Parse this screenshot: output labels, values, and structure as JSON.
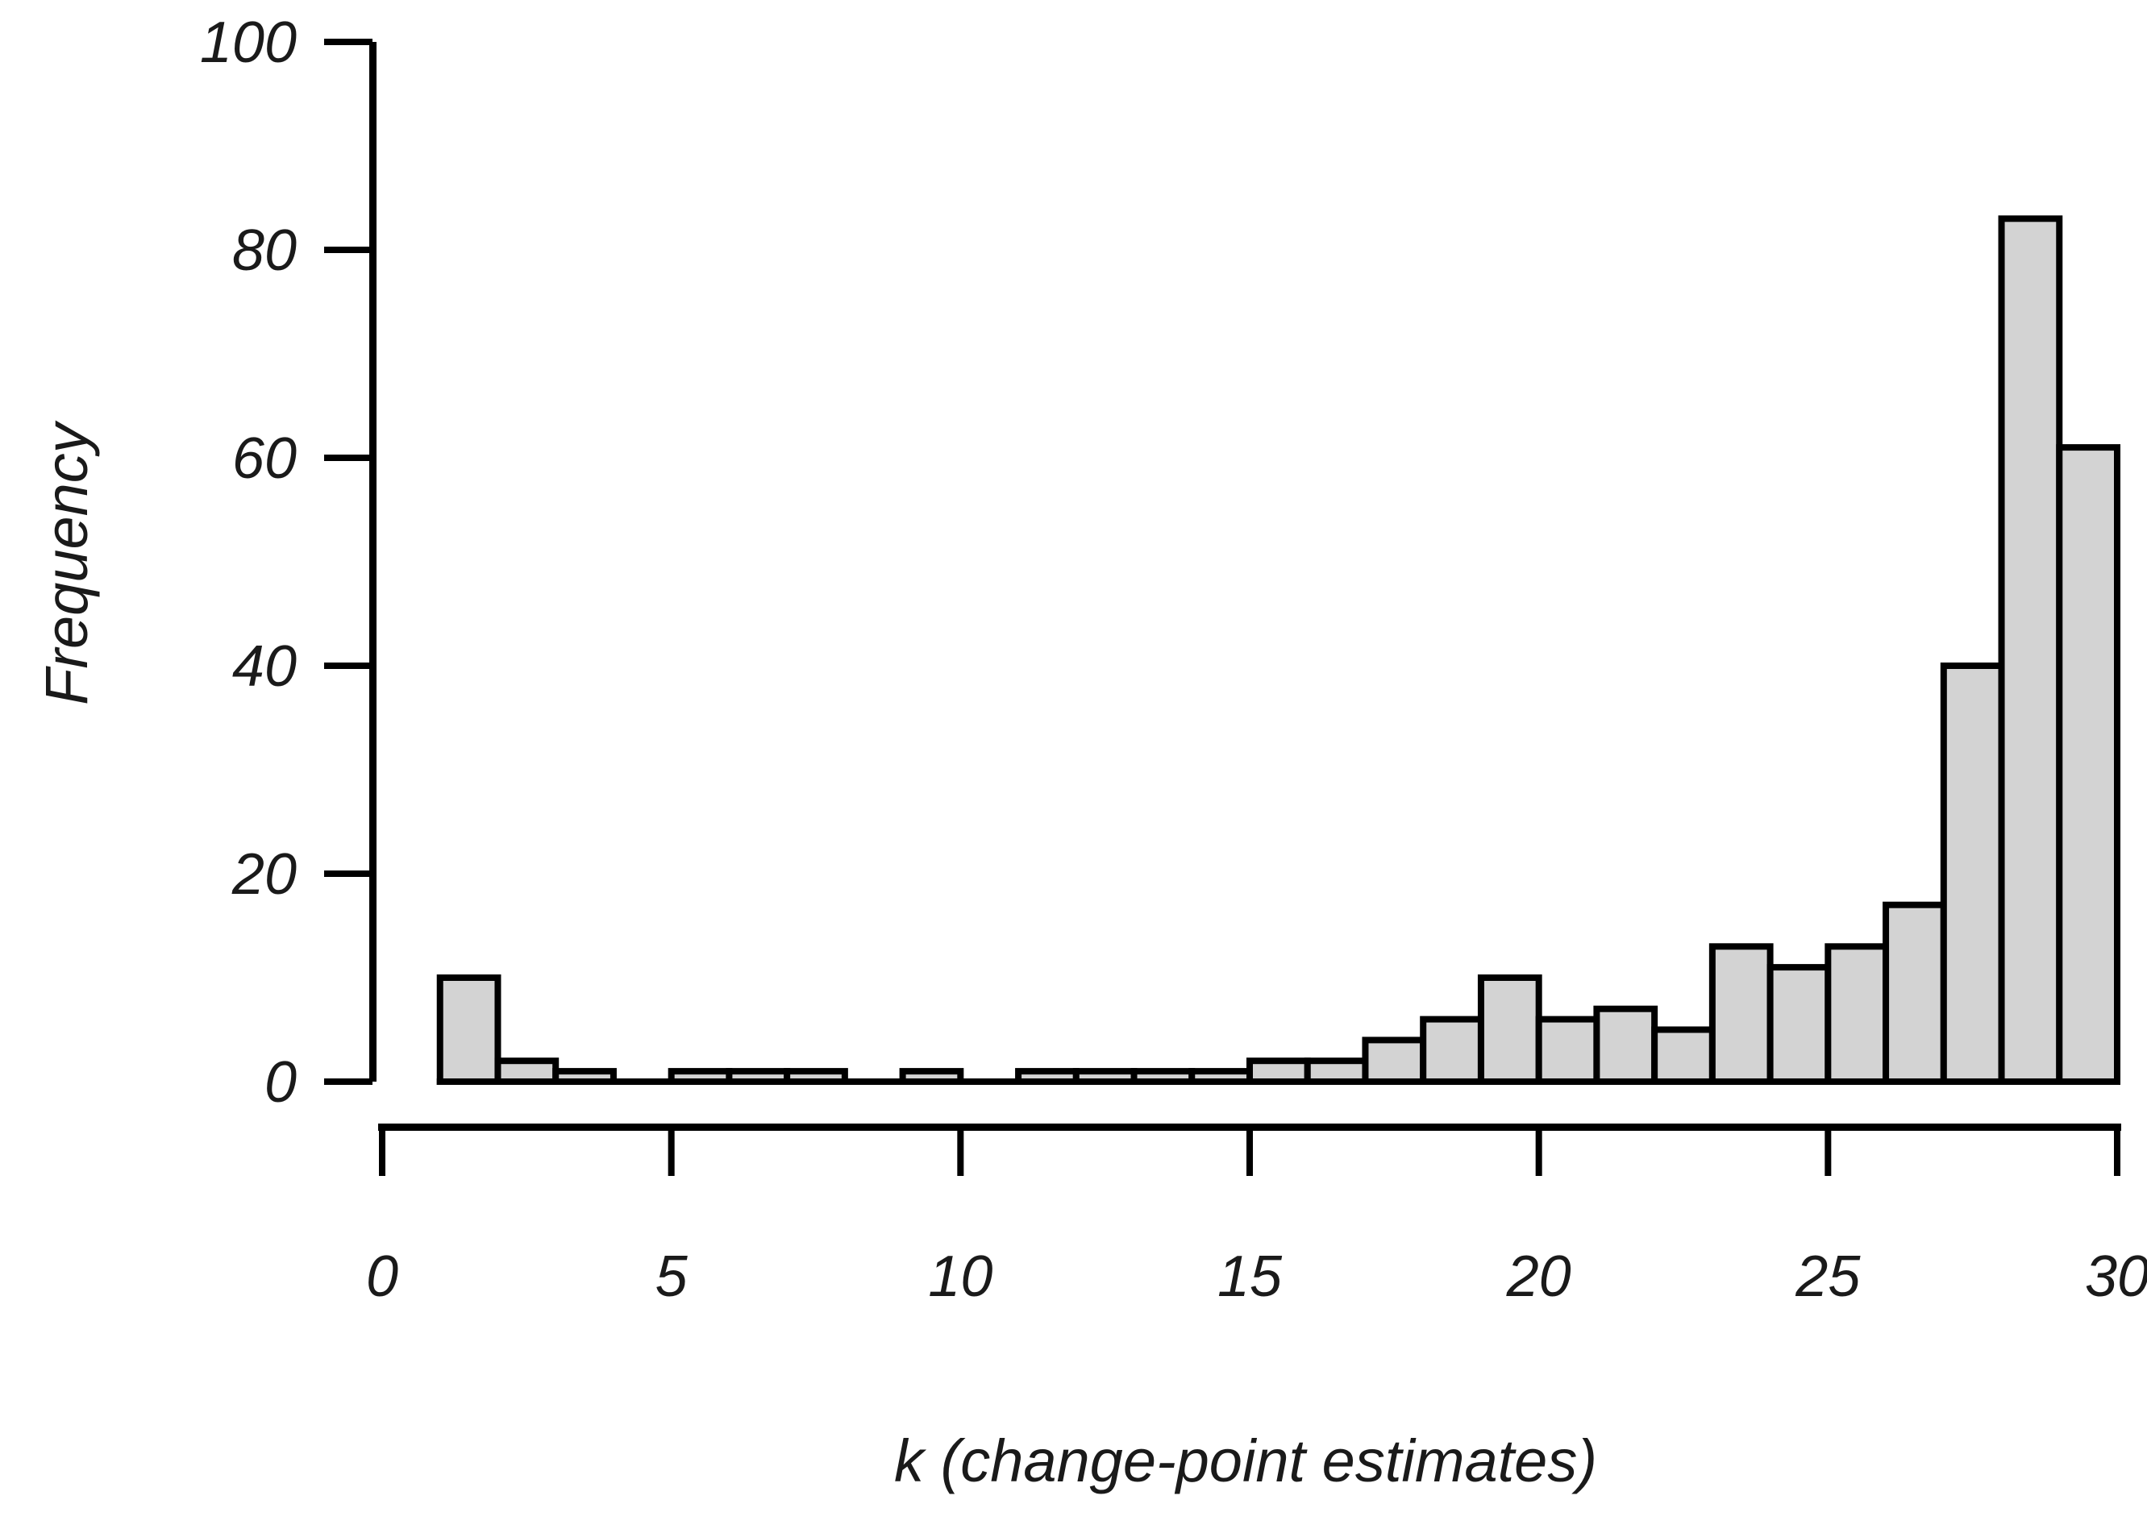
{
  "figure": {
    "background": "#ffffff"
  },
  "chart_data": {
    "type": "bar",
    "subtype": "histogram",
    "title": "",
    "xlabel": "k (change-point estimates)",
    "ylabel": "Frequency",
    "bin_edges": [
      1,
      2,
      3,
      4,
      5,
      6,
      7,
      8,
      9,
      10,
      11,
      12,
      13,
      14,
      15,
      16,
      17,
      18,
      19,
      20,
      21,
      22,
      23,
      24,
      25,
      26,
      27,
      28,
      29,
      30
    ],
    "counts": [
      10,
      2,
      1,
      0,
      1,
      1,
      1,
      0,
      1,
      0,
      1,
      1,
      1,
      1,
      2,
      2,
      4,
      6,
      10,
      6,
      7,
      5,
      13,
      11,
      13,
      17,
      40,
      83,
      61
    ],
    "x_ticks": [
      0,
      5,
      10,
      15,
      20,
      25,
      30
    ],
    "y_ticks": [
      0,
      20,
      40,
      60,
      80,
      100
    ],
    "xlim": [
      0,
      30
    ],
    "ylim": [
      0,
      100
    ],
    "grid": false,
    "bar_fill": "#d3d3d3",
    "bar_stroke": "#000000",
    "axis_color": "#000000",
    "text_color": "#1a1a1a"
  }
}
